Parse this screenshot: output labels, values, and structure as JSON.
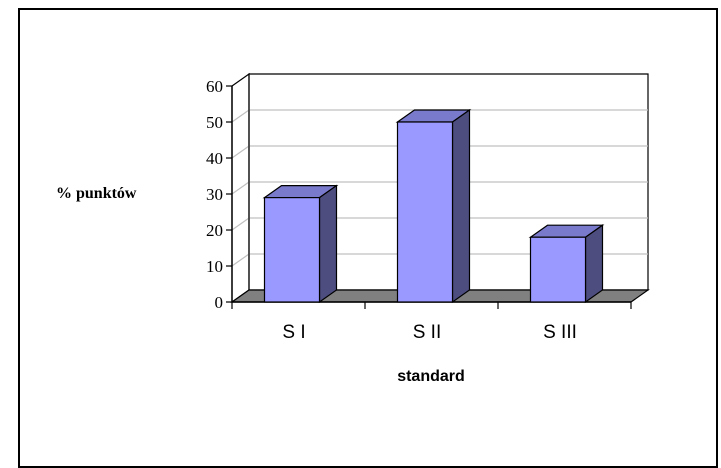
{
  "chart_data": {
    "type": "bar",
    "categories": [
      "S I",
      "S II",
      "S III"
    ],
    "values": [
      29,
      50,
      18
    ],
    "xlabel": "standard",
    "ylabel": "% punktów",
    "ylim": [
      0,
      60
    ],
    "yticks": [
      "0",
      "10",
      "20",
      "30",
      "40",
      "50",
      "60"
    ],
    "grid": true,
    "style3d": true,
    "colors": {
      "bar_front": "#9999ff",
      "bar_side": "#4d4d80",
      "bar_top": "#7a7acc",
      "floor": "#808080",
      "gridline": "#c0c0c0"
    }
  }
}
